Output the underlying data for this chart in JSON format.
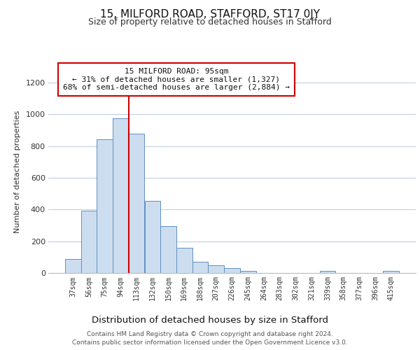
{
  "title1": "15, MILFORD ROAD, STAFFORD, ST17 0JY",
  "title2": "Size of property relative to detached houses in Stafford",
  "xlabel": "Distribution of detached houses by size in Stafford",
  "ylabel": "Number of detached properties",
  "bar_labels": [
    "37sqm",
    "56sqm",
    "75sqm",
    "94sqm",
    "113sqm",
    "132sqm",
    "150sqm",
    "169sqm",
    "188sqm",
    "207sqm",
    "226sqm",
    "245sqm",
    "264sqm",
    "283sqm",
    "302sqm",
    "321sqm",
    "339sqm",
    "358sqm",
    "377sqm",
    "396sqm",
    "415sqm"
  ],
  "bar_values": [
    90,
    395,
    845,
    975,
    880,
    455,
    295,
    160,
    70,
    50,
    32,
    15,
    0,
    0,
    0,
    0,
    12,
    0,
    0,
    0,
    12
  ],
  "bar_color": "#ccddf0",
  "bar_edge_color": "#6090c0",
  "vline_x_index": 3,
  "vline_color": "#cc0000",
  "annotation_title": "15 MILFORD ROAD: 95sqm",
  "annotation_line1": "← 31% of detached houses are smaller (1,327)",
  "annotation_line2": "68% of semi-detached houses are larger (2,884) →",
  "annotation_box_color": "#ffffff",
  "annotation_box_edge_color": "#cc0000",
  "ylim": [
    0,
    1280
  ],
  "yticks": [
    0,
    200,
    400,
    600,
    800,
    1000,
    1200
  ],
  "footer1": "Contains HM Land Registry data © Crown copyright and database right 2024.",
  "footer2": "Contains public sector information licensed under the Open Government Licence v3.0.",
  "bg_color": "#ffffff",
  "grid_color": "#c0d0e4"
}
